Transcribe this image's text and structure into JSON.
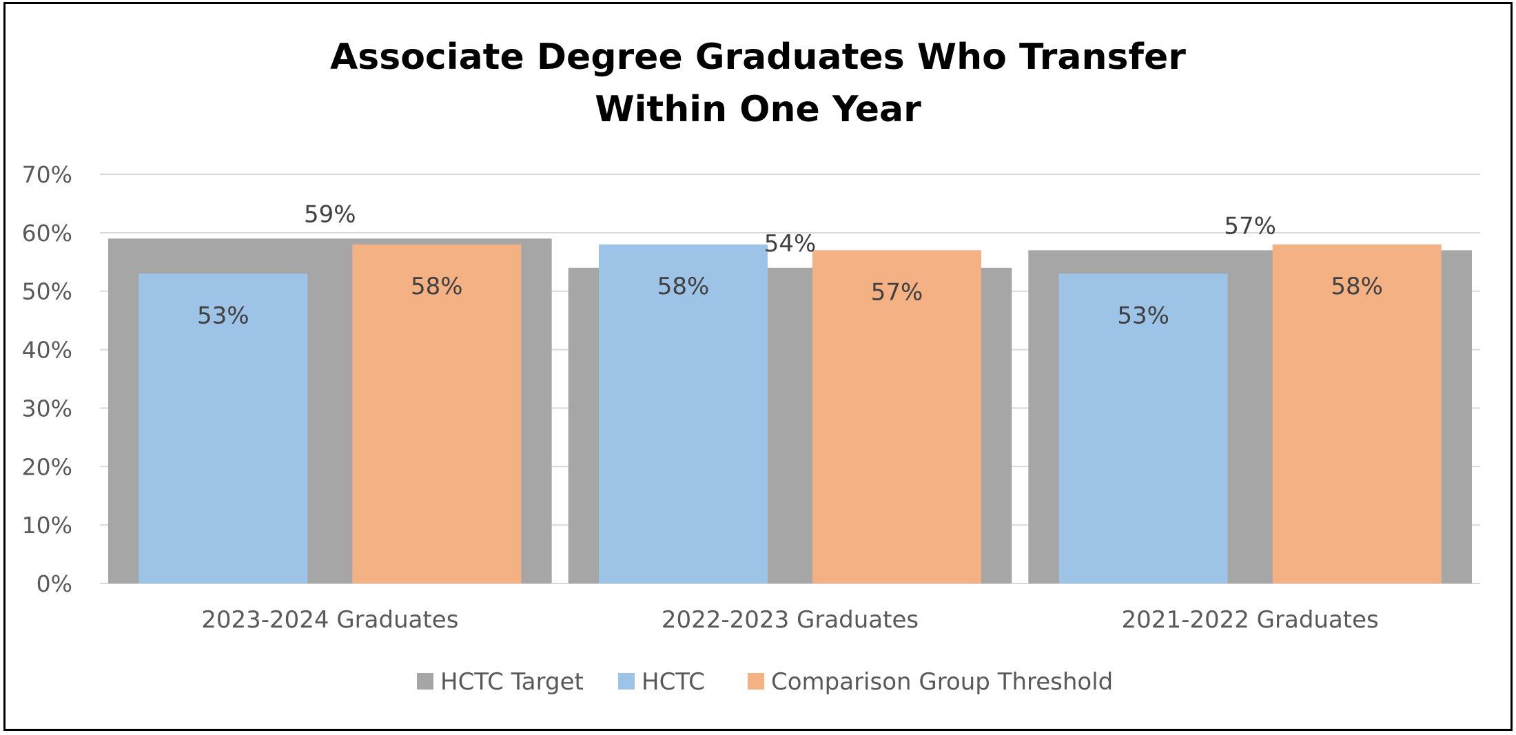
{
  "chart_data": {
    "type": "bar",
    "title_lines": [
      "Associate Degree Graduates Who Transfer",
      "Within One Year"
    ],
    "categories": [
      "2023-2024 Graduates",
      "2022-2023 Graduates",
      "2021-2022 Graduates"
    ],
    "series": [
      {
        "name": "HCTC Target",
        "values": [
          59,
          54,
          57
        ],
        "labels": [
          "59%",
          "54%",
          "57%"
        ],
        "color": "#a6a6a6",
        "role": "background"
      },
      {
        "name": "HCTC",
        "values": [
          53,
          58,
          53
        ],
        "labels": [
          "53%",
          "58%",
          "53%"
        ],
        "color": "#9dc3e6"
      },
      {
        "name": "Comparison Group Threshold",
        "values": [
          58,
          57,
          58
        ],
        "labels": [
          "58%",
          "57%",
          "58%"
        ],
        "color": "#f4b183"
      }
    ],
    "yticks": [
      "0%",
      "10%",
      "20%",
      "30%",
      "40%",
      "50%",
      "60%",
      "70%"
    ],
    "ylim": [
      0,
      70
    ],
    "grid": true,
    "gridline_color": "#d9d9d9",
    "legend_position": "bottom",
    "xlabel": "",
    "ylabel": ""
  }
}
